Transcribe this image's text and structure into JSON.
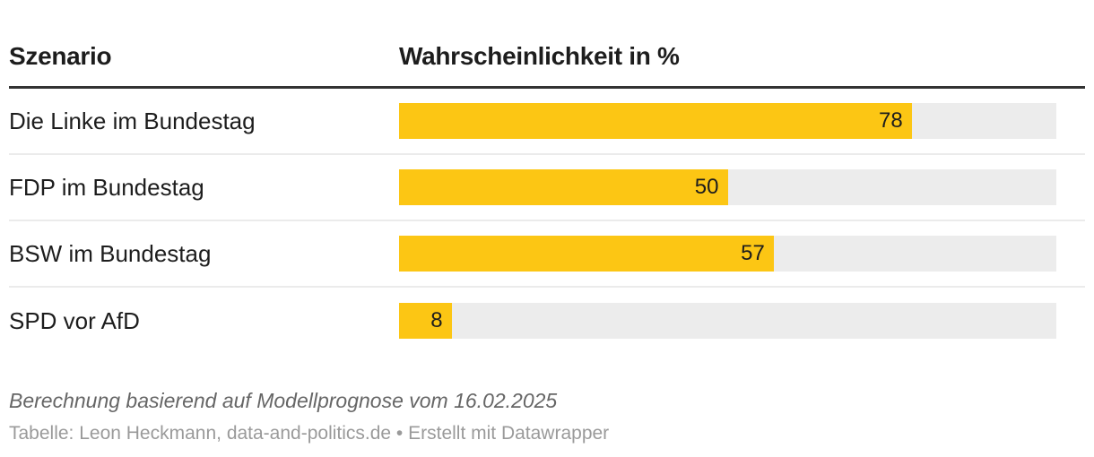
{
  "table": {
    "col1_header": "Szenario",
    "col2_header": "Wahrscheinlichkeit in %"
  },
  "chart_data": {
    "type": "bar",
    "orientation": "horizontal",
    "categories": [
      "Die Linke im Bundestag",
      "FDP im Bundestag",
      "BSW im Bundestag",
      "SPD vor AfD"
    ],
    "values": [
      78,
      50,
      57,
      8
    ],
    "value_axis_max": 100,
    "column_headers": [
      "Szenario",
      "Wahrscheinlichkeit in %"
    ],
    "value_labels_position": "inside-end",
    "legend": "none",
    "grid": "off"
  },
  "footer": {
    "note": "Berechnung basierend auf Modellprognose vom 16.02.2025",
    "byline": "Tabelle: Leon Heckmann, data-and-politics.de • Erstellt mit Datawrapper"
  },
  "colors": {
    "bar_fill": "#FCC614",
    "bar_track": "#ECECEC",
    "header_rule": "#333333",
    "row_separator": "#EBEBEB",
    "text_primary": "#1D1D1D",
    "note_text": "#666666",
    "byline_text": "#9A9A9A"
  }
}
